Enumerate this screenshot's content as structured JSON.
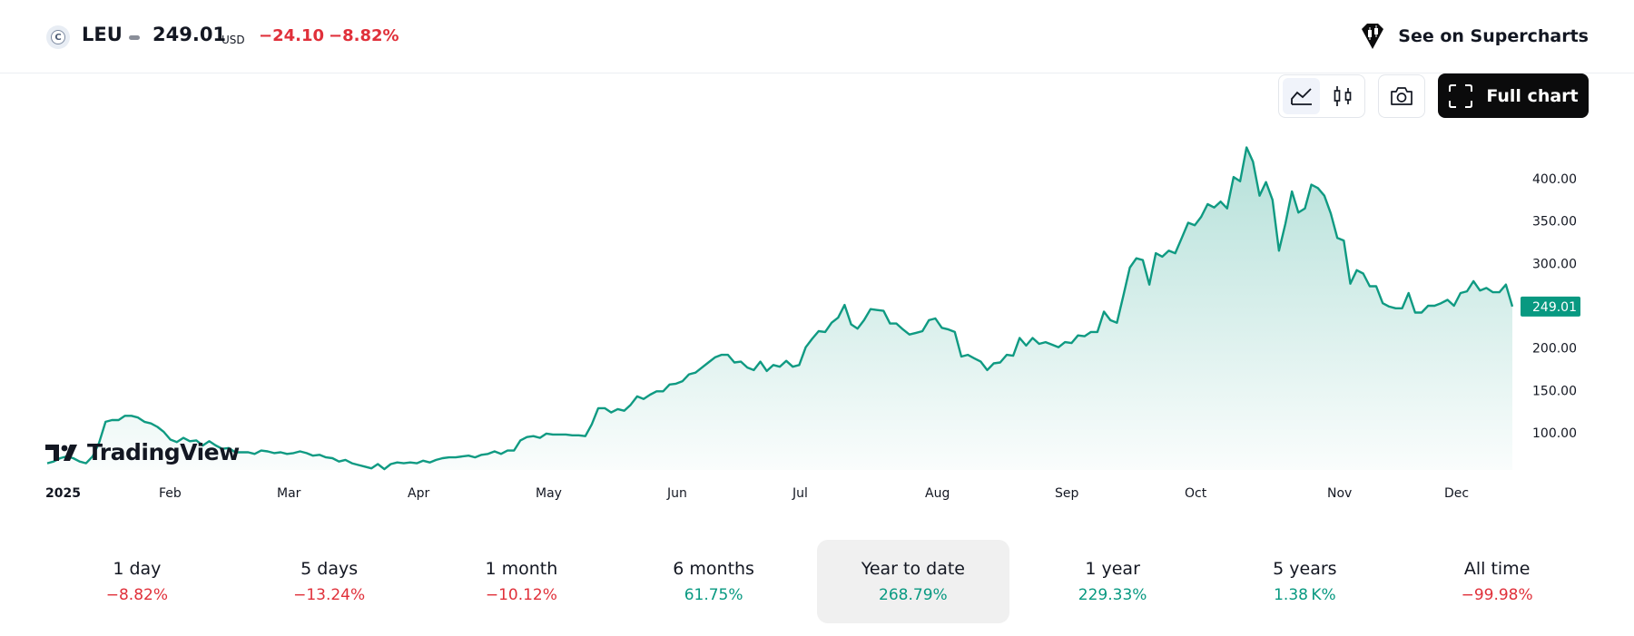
{
  "header": {
    "logo_letter": "C",
    "ticker": "LEU",
    "price": "249.01",
    "currency": "USD",
    "change": "−24.10",
    "change_pct": "−8.82%",
    "supercharts_label": "See on Supercharts"
  },
  "toolbar": {
    "full_chart_label": "Full chart",
    "buttons": [
      "line-chart-icon",
      "candles-icon",
      "camera-icon",
      "expand-icon"
    ]
  },
  "watermark": "TradingView",
  "colors": {
    "up": "#089981",
    "down": "#e0303a",
    "line": "#0f9a82"
  },
  "chart_data": {
    "type": "area",
    "y_ticks": [
      "400.00",
      "350.00",
      "300.00",
      "250.00",
      "200.00",
      "150.00",
      "100.00"
    ],
    "ylim": [
      60,
      440
    ],
    "last_price_label": "249.01",
    "x_ticks": [
      "2025",
      "Feb",
      "Mar",
      "Apr",
      "May",
      "Jun",
      "Jul",
      "Aug",
      "Sep",
      "Oct",
      "Nov",
      "Dec"
    ],
    "series": [
      {
        "values": [
          64,
          66,
          70,
          72,
          70,
          66,
          64,
          72,
          88,
          113,
          115,
          115,
          120,
          120,
          118,
          113,
          111,
          107,
          101,
          92,
          89,
          94,
          90,
          91,
          85,
          90,
          85,
          81,
          82,
          77,
          77,
          77,
          75,
          79,
          78,
          76,
          77,
          75,
          76,
          78,
          76,
          73,
          74,
          71,
          70,
          66,
          68,
          64,
          62,
          60,
          58,
          63,
          57,
          63,
          65,
          64,
          65,
          64,
          67,
          65,
          68,
          70,
          71,
          71,
          72,
          73,
          71,
          74,
          75,
          78,
          75,
          79,
          79,
          91,
          95,
          96,
          94,
          99,
          98,
          98,
          98,
          97,
          97,
          96,
          110,
          129,
          129,
          124,
          128,
          126,
          133,
          143,
          140,
          145,
          149,
          149,
          157,
          158,
          161,
          169,
          171,
          177,
          183,
          189,
          192,
          192,
          183,
          184,
          177,
          174,
          184,
          173,
          180,
          178,
          185,
          178,
          180,
          201,
          211,
          220,
          219,
          230,
          236,
          251,
          228,
          223,
          233,
          246,
          245,
          244,
          229,
          229,
          222,
          216,
          218,
          220,
          233,
          235,
          224,
          222,
          219,
          190,
          192,
          188,
          184,
          174,
          182,
          183,
          192,
          191,
          212,
          203,
          212,
          205,
          207,
          204,
          201,
          207,
          206,
          215,
          214,
          219,
          219,
          243,
          233,
          230,
          262,
          295,
          306,
          304,
          275,
          312,
          308,
          315,
          312,
          330,
          348,
          345,
          355,
          370,
          366,
          373,
          365,
          402,
          397,
          437,
          420,
          380,
          396,
          375,
          315,
          347,
          385,
          360,
          365,
          393,
          389,
          380,
          359,
          330,
          327,
          276,
          292,
          288,
          273,
          273,
          253,
          249,
          247,
          247,
          265,
          242,
          242,
          250,
          250,
          253,
          257,
          250,
          265,
          267,
          279,
          268,
          271,
          266,
          266,
          275,
          249
        ]
      }
    ]
  },
  "periods": [
    {
      "label": "1 day",
      "value": "−8.82%",
      "trend": "neg"
    },
    {
      "label": "5 days",
      "value": "−13.24%",
      "trend": "neg"
    },
    {
      "label": "1 month",
      "value": "−10.12%",
      "trend": "neg"
    },
    {
      "label": "6 months",
      "value": "61.75%",
      "trend": "pos"
    },
    {
      "label": "Year to date",
      "value": "268.79%",
      "trend": "pos",
      "selected": true
    },
    {
      "label": "1 year",
      "value": "229.33%",
      "trend": "pos"
    },
    {
      "label": "5 years",
      "value": "1.38 K%",
      "trend": "pos"
    },
    {
      "label": "All time",
      "value": "−99.98%",
      "trend": "neg"
    }
  ]
}
